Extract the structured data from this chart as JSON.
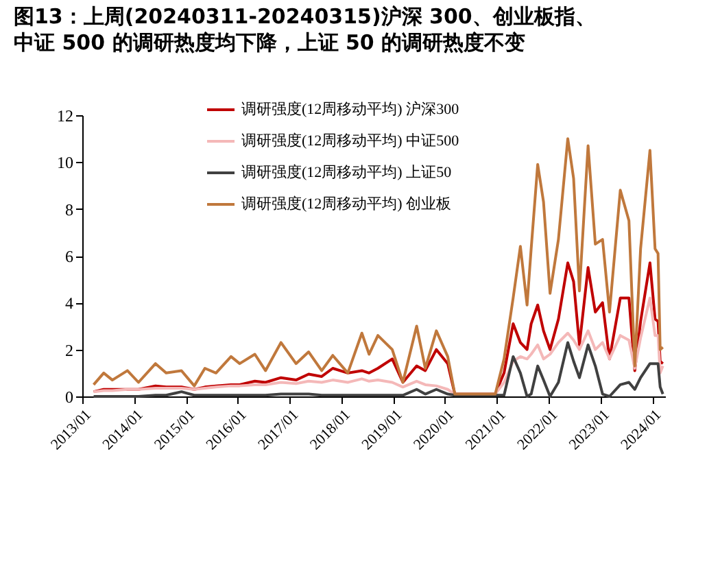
{
  "chart_data": {
    "type": "line",
    "title": "图13：上周(20240311-20240315)沪深 300、创业板指、中证 500 的调研热度均下降，上证 50 的调研热度不变",
    "x": [
      "2013-03-22",
      "2013-06-01",
      "2013-08-01",
      "2013-11-15",
      "2014-02-01",
      "2014-06-01",
      "2014-08-15",
      "2014-12-01",
      "2015-03-01",
      "2015-05-15",
      "2015-08-01",
      "2015-11-15",
      "2016-01-15",
      "2016-05-01",
      "2016-07-15",
      "2016-11-01",
      "2017-02-15",
      "2017-05-15",
      "2017-08-15",
      "2017-11-01",
      "2018-02-15",
      "2018-05-25",
      "2018-07-15",
      "2018-09-15",
      "2018-12-25",
      "2019-03-10",
      "2019-06-15",
      "2019-08-15",
      "2019-11-01",
      "2020-01-20",
      "2020-03-10",
      "2020-12-20",
      "2021-02-20",
      "2021-04-25",
      "2021-06-15",
      "2021-08-01",
      "2021-08-30",
      "2021-10-15",
      "2021-11-25",
      "2022-01-10",
      "2022-03-10",
      "2022-05-15",
      "2022-06-25",
      "2022-08-05",
      "2022-10-05",
      "2022-11-25",
      "2023-01-15",
      "2023-03-05",
      "2023-05-20",
      "2023-07-20",
      "2023-08-30",
      "2023-10-10",
      "2023-12-15",
      "2024-01-20",
      "2024-02-10",
      "2024-02-25",
      "2024-03-15"
    ],
    "series": [
      {
        "name": "调研强度(12周移动平均) 沪深300",
        "color": "#c00000",
        "values": [
          0.2,
          0.3,
          0.3,
          0.3,
          0.3,
          0.45,
          0.4,
          0.4,
          0.3,
          0.4,
          0.45,
          0.5,
          0.5,
          0.65,
          0.6,
          0.8,
          0.7,
          0.95,
          0.85,
          1.2,
          1.0,
          1.1,
          1.0,
          1.2,
          1.6,
          0.6,
          1.3,
          1.1,
          2.0,
          1.4,
          0.1,
          0.1,
          1.0,
          3.1,
          2.3,
          2.0,
          3.1,
          3.9,
          2.8,
          2.0,
          3.3,
          5.7,
          4.9,
          2.2,
          5.5,
          3.6,
          4.0,
          1.6,
          4.2,
          4.2,
          1.1,
          3.2,
          5.7,
          3.3,
          3.2,
          1.5,
          1.4
        ]
      },
      {
        "name": "调研强度(12周移动平均) 中证500",
        "color": "#f4b8b8",
        "values": [
          0.2,
          0.25,
          0.25,
          0.3,
          0.3,
          0.35,
          0.35,
          0.35,
          0.3,
          0.35,
          0.4,
          0.45,
          0.45,
          0.5,
          0.5,
          0.6,
          0.55,
          0.65,
          0.6,
          0.7,
          0.6,
          0.75,
          0.65,
          0.7,
          0.6,
          0.4,
          0.65,
          0.5,
          0.45,
          0.3,
          0.1,
          0.1,
          0.6,
          1.5,
          1.7,
          1.6,
          1.8,
          2.2,
          1.6,
          1.8,
          2.3,
          2.7,
          2.4,
          2.0,
          2.8,
          2.0,
          2.3,
          1.6,
          2.6,
          2.4,
          1.2,
          2.5,
          4.2,
          2.6,
          2.6,
          1.0,
          1.3
        ]
      },
      {
        "name": "调研强度(12周移动平均) 上证50",
        "color": "#404040",
        "values": [
          0.0,
          0.0,
          0.0,
          0.0,
          0.0,
          0.05,
          0.05,
          0.2,
          0.05,
          0.05,
          0.05,
          0.05,
          0.05,
          0.05,
          0.05,
          0.1,
          0.1,
          0.1,
          0.05,
          0.05,
          0.05,
          0.05,
          0.05,
          0.05,
          0.05,
          0.05,
          0.3,
          0.1,
          0.3,
          0.1,
          0.05,
          0.05,
          0.05,
          1.7,
          1.0,
          0.0,
          0.1,
          1.3,
          0.7,
          0.0,
          0.6,
          2.3,
          1.5,
          0.8,
          2.2,
          1.3,
          0.1,
          0.0,
          0.5,
          0.6,
          0.3,
          0.8,
          1.4,
          1.4,
          1.4,
          0.4,
          0.1
        ]
      },
      {
        "name": "调研强度(12周移动平均) 创业板",
        "color": "#c0783c",
        "values": [
          0.5,
          1.0,
          0.7,
          1.1,
          0.6,
          1.4,
          1.0,
          1.1,
          0.45,
          1.2,
          1.0,
          1.7,
          1.4,
          1.8,
          1.1,
          2.3,
          1.4,
          1.9,
          1.1,
          1.75,
          1.0,
          2.7,
          1.8,
          2.6,
          2.0,
          0.6,
          3.0,
          1.2,
          2.8,
          1.7,
          0.1,
          0.1,
          1.6,
          4.2,
          6.4,
          3.9,
          6.3,
          9.9,
          8.3,
          4.4,
          6.7,
          11.0,
          9.3,
          4.5,
          10.7,
          6.5,
          6.7,
          3.6,
          8.8,
          7.5,
          1.3,
          6.3,
          10.5,
          6.3,
          6.1,
          2.0,
          2.1
        ]
      }
    ],
    "xlim": [
      "2013-01-01",
      "2024-03-31"
    ],
    "xticks": [
      {
        "value": "2013-01",
        "label": "2013/01"
      },
      {
        "value": "2014-01",
        "label": "2014/01"
      },
      {
        "value": "2015-01",
        "label": "2015/01"
      },
      {
        "value": "2016-01",
        "label": "2016/01"
      },
      {
        "value": "2017-01",
        "label": "2017/01"
      },
      {
        "value": "2018-01",
        "label": "2018/01"
      },
      {
        "value": "2019-01",
        "label": "2019/01"
      },
      {
        "value": "2020-01",
        "label": "2020/01"
      },
      {
        "value": "2021-01",
        "label": "2021/01"
      },
      {
        "value": "2022-01",
        "label": "2022/01"
      },
      {
        "value": "2023-01",
        "label": "2023/01"
      },
      {
        "value": "2024-01",
        "label": "2024/01"
      }
    ],
    "ylim": [
      0,
      12
    ],
    "yticks": [
      0,
      2,
      4,
      6,
      8,
      10,
      12
    ],
    "grid": false,
    "legend": "top",
    "marker": "none",
    "line_style": "solid"
  }
}
